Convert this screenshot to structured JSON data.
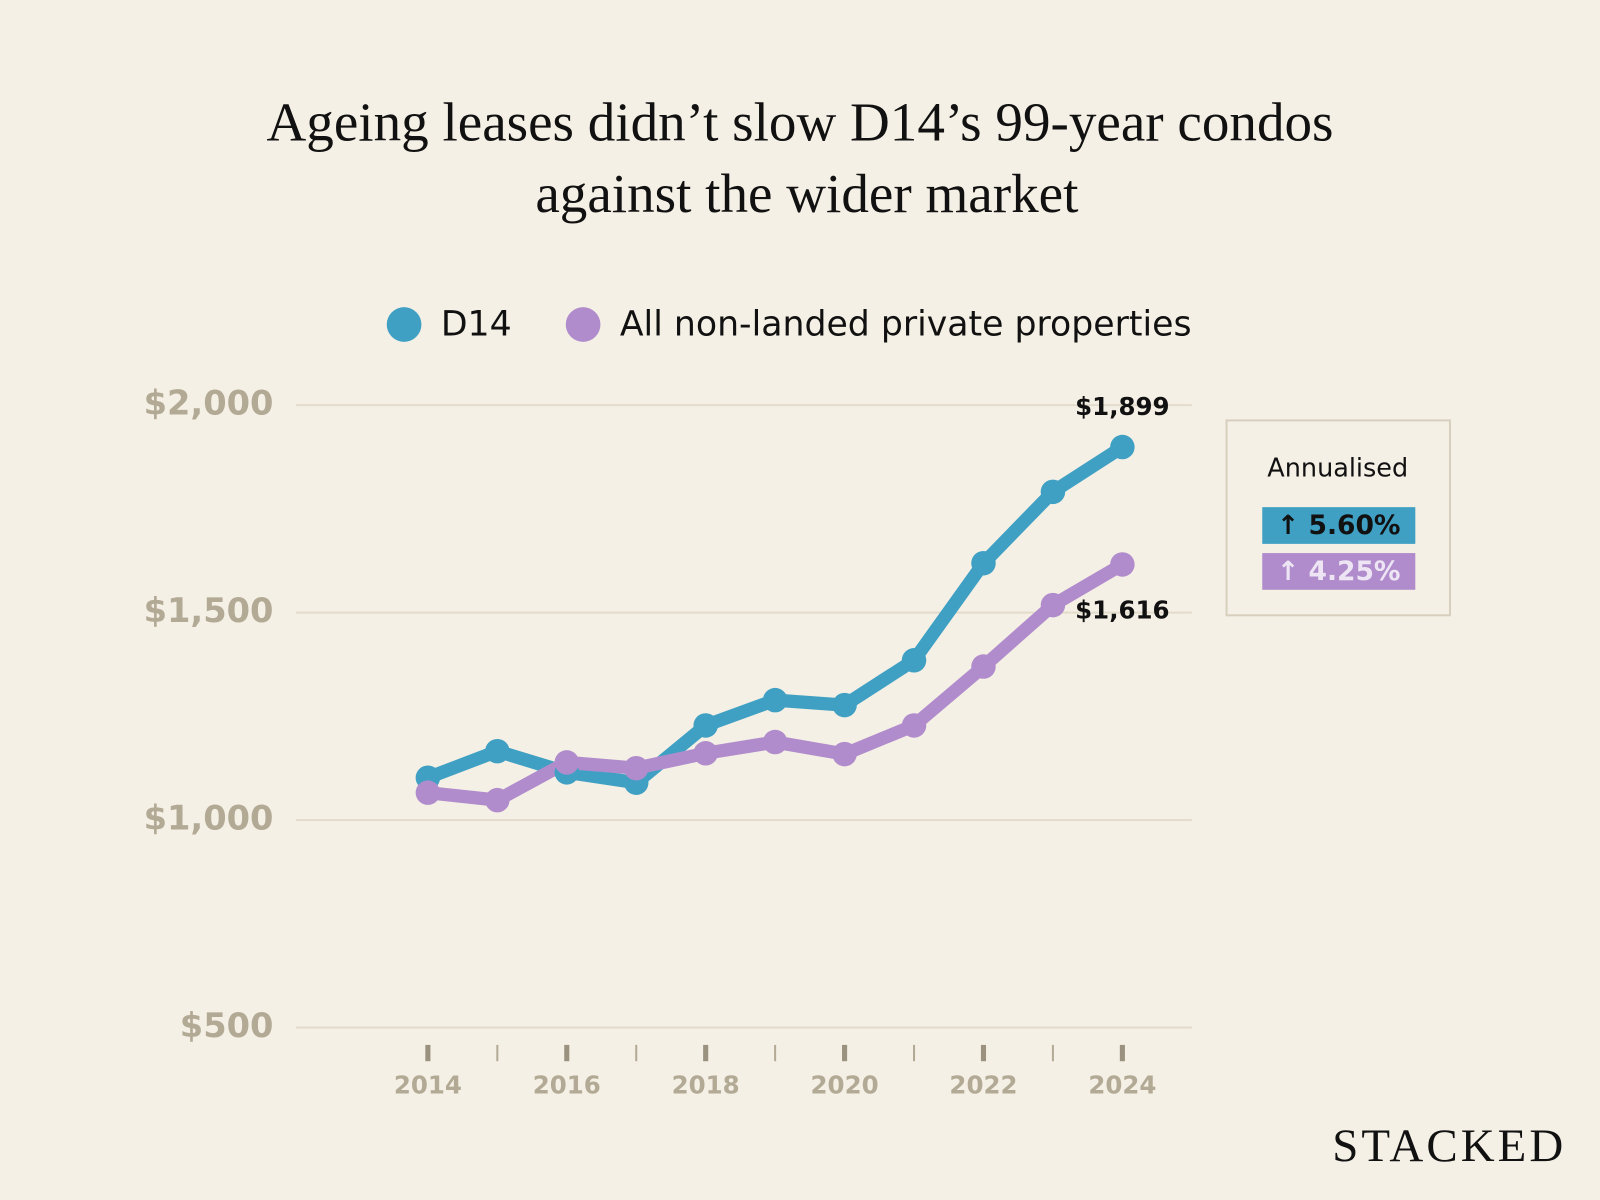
{
  "chart_data": {
    "type": "line",
    "title": "Ageing leases didn’t slow D14’s 99-year condos against the wider market",
    "x": [
      2014,
      2015,
      2016,
      2017,
      2018,
      2019,
      2020,
      2021,
      2022,
      2023,
      2024
    ],
    "series": [
      {
        "name": "D14",
        "color": "#3fa0c4",
        "values": [
          1102,
          1166,
          1115,
          1090,
          1228,
          1289,
          1277,
          1385,
          1619,
          1791,
          1899
        ],
        "value_labels": [
          null,
          null,
          null,
          null,
          null,
          null,
          null,
          null,
          null,
          null,
          "$1,899"
        ]
      },
      {
        "name": "All non-landed private properties",
        "color": "#b08ccc",
        "values": [
          1066,
          1048,
          1139,
          1125,
          1161,
          1188,
          1159,
          1228,
          1370,
          1518,
          1616
        ],
        "value_labels": [
          null,
          null,
          null,
          null,
          null,
          null,
          null,
          null,
          null,
          null,
          "$1,616"
        ]
      }
    ],
    "xlim": [
      2012.1,
      2025
    ],
    "xticks": [
      2014,
      2016,
      2018,
      2020,
      2022,
      2024
    ],
    "xminorticks": [
      2015,
      2017,
      2019,
      2021,
      2023
    ],
    "ylim": [
      500,
      2000
    ],
    "yticks": [
      {
        "value": 500,
        "label": "$500"
      },
      {
        "value": 1000,
        "label": "$1,000"
      },
      {
        "value": 1500,
        "label": "$1,500"
      },
      {
        "value": 2000,
        "label": "$2,000"
      }
    ],
    "grid": true,
    "annualised": {
      "title": "Annualised",
      "badges": [
        "↑ 5.60%",
        "↑ 4.25%"
      ]
    },
    "logo": "STACKED"
  }
}
